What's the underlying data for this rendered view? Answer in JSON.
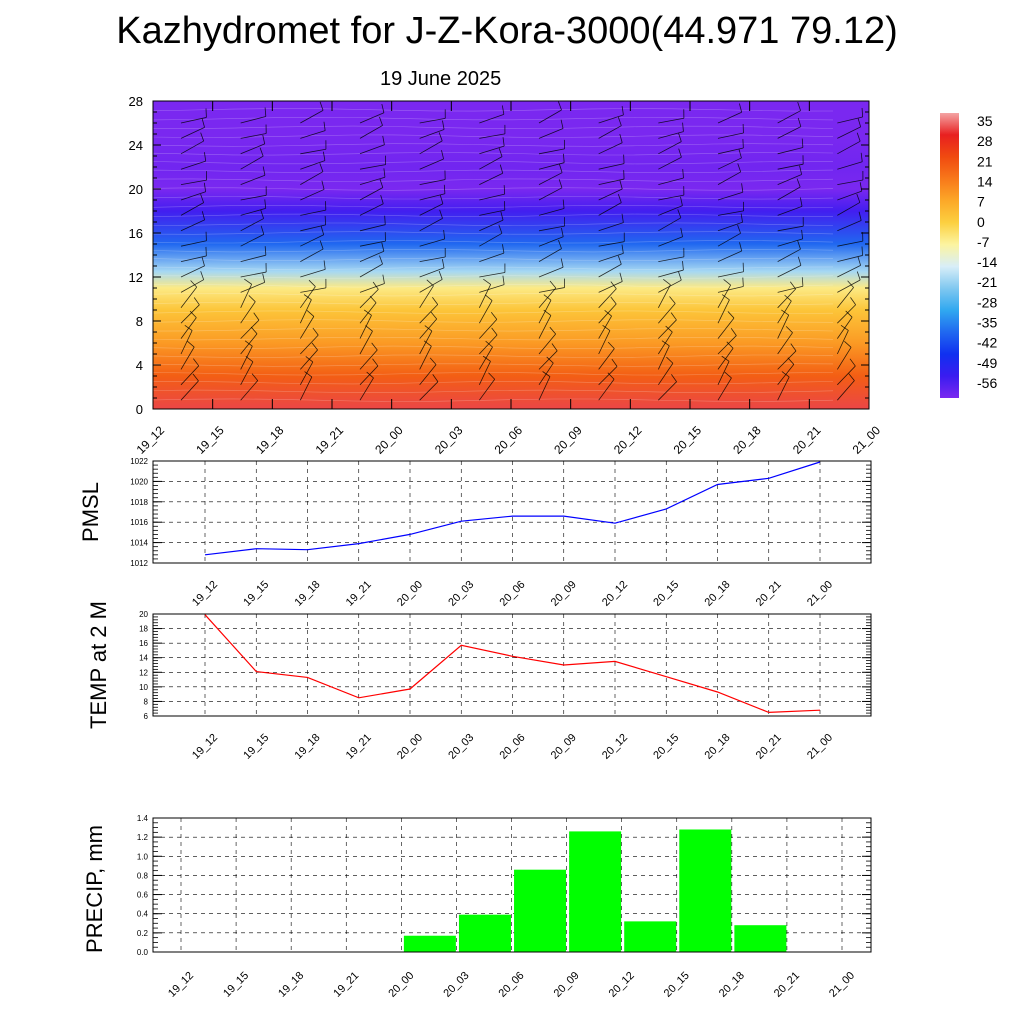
{
  "title": "Kazhydromet for J-Z-Kora-3000(44.971 79.12)",
  "date": "19 June 2025",
  "chart_data": [
    {
      "type": "heatmap",
      "title": "",
      "x_ticks": [
        "19_12",
        "19_15",
        "19_18",
        "19_21",
        "20_00",
        "20_03",
        "20_06",
        "20_09",
        "20_12",
        "20_15",
        "20_18",
        "20_21",
        "21_00"
      ],
      "y_ticks": [
        "0",
        "4",
        "8",
        "12",
        "16",
        "20",
        "24",
        "28"
      ],
      "ylim": [
        0,
        28
      ],
      "colorbar_labels": [
        "35",
        "28",
        "21",
        "14",
        "7",
        "0",
        "-7",
        "-14",
        "-21",
        "-28",
        "-35",
        "-42",
        "-49",
        "-56"
      ],
      "colorbar_colors": [
        "#f4a4a4",
        "#e82020",
        "#f04a10",
        "#f8781a",
        "#fca828",
        "#fcd040",
        "#fcf4a0",
        "#d8eef8",
        "#80c8f0",
        "#30a8f0",
        "#2068f0",
        "#1030f0",
        "#3a1cf0",
        "#7a28f0"
      ],
      "temperature_profile": [
        {
          "height": 0,
          "value": 30
        },
        {
          "height": 3,
          "value": 18
        },
        {
          "height": 6,
          "value": 9
        },
        {
          "height": 9,
          "value": 2
        },
        {
          "height": 11,
          "value": -5
        },
        {
          "height": 12.5,
          "value": -18
        },
        {
          "height": 15,
          "value": -35
        },
        {
          "height": 18,
          "value": -50
        },
        {
          "height": 20,
          "value": -58
        },
        {
          "height": 22,
          "value": -55
        },
        {
          "height": 25,
          "value": -56
        },
        {
          "height": 28,
          "value": -57
        }
      ],
      "grid": false,
      "wind_barbs": true
    },
    {
      "type": "line",
      "ylabel": "PMSL",
      "x": [
        "19_12",
        "19_15",
        "19_18",
        "19_21",
        "20_00",
        "20_03",
        "20_06",
        "20_09",
        "20_12",
        "20_15",
        "20_18",
        "20_21",
        "21_00"
      ],
      "y_ticks": [
        "1012",
        "1014",
        "1016",
        "1018",
        "1020",
        "1022"
      ],
      "ylim": [
        1012,
        1022
      ],
      "series": [
        {
          "values": [
            1012.8,
            1013.4,
            1013.3,
            1013.9,
            1014.8,
            1016.1,
            1016.6,
            1016.6,
            1015.9,
            1017.3,
            1019.7,
            1020.3,
            1021.9
          ],
          "color": "#0000ff"
        }
      ],
      "grid": true
    },
    {
      "type": "line",
      "ylabel": "TEMP at 2 M",
      "x": [
        "19_12",
        "19_15",
        "19_18",
        "19_21",
        "20_00",
        "20_03",
        "20_06",
        "20_09",
        "20_12",
        "20_15",
        "20_18",
        "20_21",
        "21_00"
      ],
      "y_ticks": [
        "6",
        "8",
        "10",
        "12",
        "14",
        "16",
        "18",
        "20"
      ],
      "ylim": [
        6,
        20
      ],
      "series": [
        {
          "values": [
            19.9,
            12.1,
            11.3,
            8.5,
            9.7,
            15.7,
            14.2,
            13.0,
            13.5,
            11.4,
            9.3,
            6.5,
            6.8
          ],
          "color": "#ff0000"
        }
      ],
      "grid": true
    },
    {
      "type": "bar",
      "ylabel": "PRECIP, mm",
      "categories": [
        "19_12",
        "19_15",
        "19_18",
        "19_21",
        "20_00",
        "20_03",
        "20_06",
        "20_09",
        "20_12",
        "20_15",
        "20_18",
        "20_21",
        "21_00"
      ],
      "y_ticks": [
        "0.0",
        "0.2",
        "0.4",
        "0.6",
        "0.8",
        "1.0",
        "1.2",
        "1.4"
      ],
      "ylim": [
        0,
        1.4
      ],
      "values": [
        0,
        0,
        0,
        0,
        0,
        0.17,
        0.39,
        0.86,
        1.26,
        0.32,
        1.28,
        0.28,
        0
      ],
      "color": "#00ff00",
      "grid": true
    }
  ]
}
